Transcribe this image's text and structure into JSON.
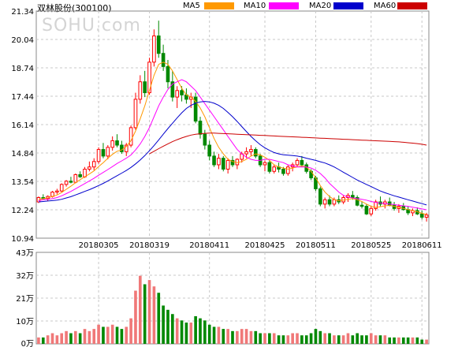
{
  "chart_title": "双林股份(300100)",
  "watermark": "SOHU.com",
  "legend": [
    {
      "label": "MA5",
      "color": "#ff9900"
    },
    {
      "label": "MA10",
      "color": "#ff00ff"
    },
    {
      "label": "MA20",
      "color": "#0000cc"
    },
    {
      "label": "MA60",
      "color": "#cc0000"
    }
  ],
  "colors": {
    "up": "#ff0000",
    "down": "#008800",
    "vol_up": "#f07878",
    "grid": "#c8c8c8",
    "axis": "#888888"
  },
  "chart_data": {
    "type": "candlestick",
    "price_axis": {
      "min": 10.94,
      "max": 21.34,
      "ticks": [
        "21.34",
        "20.04",
        "18.74",
        "17.44",
        "16.14",
        "14.84",
        "13.54",
        "12.24",
        "10.94"
      ]
    },
    "volume_axis": {
      "min": 0,
      "max": 43,
      "unit": "万",
      "ticks": [
        "43万",
        "32万",
        "21万",
        "10万",
        "0万"
      ]
    },
    "x_labels": [
      {
        "label": "20180305",
        "index": 13
      },
      {
        "label": "20180319",
        "index": 24
      },
      {
        "label": "20180411",
        "index": 37
      },
      {
        "label": "20180425",
        "index": 49
      },
      {
        "label": "20180511",
        "index": 60
      },
      {
        "label": "20180525",
        "index": 72
      },
      {
        "label": "20180611",
        "index": 83
      }
    ],
    "ohlc": [
      [
        12.6,
        12.85,
        12.55,
        12.8
      ],
      [
        12.8,
        12.95,
        12.7,
        12.75
      ],
      [
        12.75,
        12.9,
        12.65,
        12.85
      ],
      [
        12.85,
        13.1,
        12.8,
        13.05
      ],
      [
        13.05,
        13.2,
        12.95,
        13.1
      ],
      [
        13.1,
        13.45,
        13.05,
        13.4
      ],
      [
        13.4,
        13.6,
        13.3,
        13.55
      ],
      [
        13.55,
        13.75,
        13.45,
        13.5
      ],
      [
        13.5,
        13.9,
        13.45,
        13.85
      ],
      [
        13.85,
        14.0,
        13.7,
        13.75
      ],
      [
        13.75,
        14.2,
        13.7,
        14.1
      ],
      [
        14.1,
        14.45,
        14.0,
        14.2
      ],
      [
        14.2,
        14.6,
        14.05,
        14.45
      ],
      [
        14.45,
        15.1,
        14.35,
        15.0
      ],
      [
        15.0,
        15.3,
        14.6,
        14.7
      ],
      [
        14.7,
        15.2,
        14.55,
        15.1
      ],
      [
        15.1,
        15.6,
        14.95,
        15.4
      ],
      [
        15.4,
        15.7,
        15.1,
        15.2
      ],
      [
        15.2,
        15.4,
        14.8,
        14.9
      ],
      [
        14.9,
        15.3,
        14.7,
        15.2
      ],
      [
        15.2,
        16.1,
        15.1,
        16.0
      ],
      [
        16.0,
        17.6,
        15.9,
        17.3
      ],
      [
        17.3,
        18.4,
        17.1,
        18.1
      ],
      [
        18.1,
        18.6,
        17.4,
        17.6
      ],
      [
        17.6,
        19.2,
        17.5,
        19.0
      ],
      [
        19.0,
        20.5,
        18.8,
        20.2
      ],
      [
        20.2,
        20.9,
        19.2,
        19.4
      ],
      [
        19.4,
        19.8,
        18.6,
        18.8
      ],
      [
        18.8,
        19.1,
        17.8,
        18.1
      ],
      [
        18.1,
        18.6,
        17.2,
        17.4
      ],
      [
        17.4,
        17.9,
        16.9,
        17.7
      ],
      [
        17.7,
        17.9,
        17.2,
        17.5
      ],
      [
        17.5,
        17.8,
        17.1,
        17.3
      ],
      [
        17.3,
        17.6,
        16.9,
        17.4
      ],
      [
        17.4,
        17.6,
        16.2,
        16.3
      ],
      [
        16.3,
        16.5,
        15.5,
        15.7
      ],
      [
        15.7,
        15.9,
        15.0,
        15.2
      ],
      [
        15.2,
        15.4,
        14.5,
        14.7
      ],
      [
        14.7,
        14.9,
        14.2,
        14.3
      ],
      [
        14.3,
        14.8,
        14.1,
        14.6
      ],
      [
        14.6,
        14.7,
        14.0,
        14.1
      ],
      [
        14.1,
        14.6,
        13.9,
        14.5
      ],
      [
        14.5,
        14.7,
        14.2,
        14.3
      ],
      [
        14.3,
        14.6,
        14.1,
        14.55
      ],
      [
        14.55,
        14.9,
        14.4,
        14.8
      ],
      [
        14.8,
        15.1,
        14.6,
        14.9
      ],
      [
        14.9,
        15.2,
        14.7,
        15.0
      ],
      [
        15.0,
        15.1,
        14.6,
        14.7
      ],
      [
        14.7,
        14.8,
        14.2,
        14.3
      ],
      [
        14.3,
        14.5,
        14.0,
        14.4
      ],
      [
        14.4,
        14.5,
        13.9,
        14.0
      ],
      [
        14.0,
        14.3,
        13.9,
        14.2
      ],
      [
        14.2,
        14.4,
        13.95,
        14.1
      ],
      [
        14.1,
        14.2,
        13.8,
        13.9
      ],
      [
        13.9,
        14.3,
        13.8,
        14.2
      ],
      [
        14.2,
        14.4,
        14.0,
        14.3
      ],
      [
        14.3,
        14.6,
        14.2,
        14.5
      ],
      [
        14.5,
        14.7,
        14.2,
        14.3
      ],
      [
        14.3,
        14.4,
        13.9,
        14.0
      ],
      [
        14.0,
        14.1,
        13.6,
        13.7
      ],
      [
        13.7,
        13.8,
        13.1,
        13.2
      ],
      [
        13.2,
        13.3,
        12.4,
        12.5
      ],
      [
        12.5,
        12.8,
        12.3,
        12.7
      ],
      [
        12.7,
        12.9,
        12.4,
        12.5
      ],
      [
        12.5,
        12.8,
        12.4,
        12.7
      ],
      [
        12.7,
        12.9,
        12.5,
        12.6
      ],
      [
        12.6,
        12.9,
        12.5,
        12.8
      ],
      [
        12.8,
        13.0,
        12.6,
        12.9
      ],
      [
        12.9,
        13.1,
        12.7,
        12.8
      ],
      [
        12.8,
        12.9,
        12.4,
        12.45
      ],
      [
        12.45,
        12.6,
        12.3,
        12.4
      ],
      [
        12.4,
        12.5,
        12.0,
        12.05
      ],
      [
        12.05,
        12.4,
        11.95,
        12.3
      ],
      [
        12.3,
        12.7,
        12.2,
        12.6
      ],
      [
        12.6,
        12.85,
        12.4,
        12.5
      ],
      [
        12.5,
        12.7,
        12.3,
        12.6
      ],
      [
        12.6,
        12.8,
        12.4,
        12.45
      ],
      [
        12.45,
        12.6,
        12.2,
        12.3
      ],
      [
        12.3,
        12.5,
        12.1,
        12.4
      ],
      [
        12.4,
        12.55,
        12.2,
        12.25
      ],
      [
        12.25,
        12.4,
        12.0,
        12.1
      ],
      [
        12.1,
        12.3,
        11.95,
        12.2
      ],
      [
        12.2,
        12.35,
        12.0,
        12.05
      ],
      [
        12.05,
        12.2,
        11.8,
        11.9
      ],
      [
        11.9,
        12.1,
        11.7,
        12.0
      ]
    ],
    "volume": [
      3,
      3,
      4,
      5,
      4,
      5,
      6,
      5,
      6,
      5,
      7,
      6,
      7,
      9,
      8,
      8,
      9,
      8,
      7,
      8,
      12,
      25,
      32,
      28,
      30,
      27,
      24,
      18,
      16,
      14,
      12,
      11,
      10,
      10,
      13,
      12,
      11,
      9,
      8,
      8,
      7,
      7,
      6,
      6,
      7,
      7,
      6,
      6,
      5,
      5,
      5,
      5,
      4,
      4,
      4,
      5,
      5,
      4,
      4,
      5,
      7,
      6,
      5,
      5,
      4,
      4,
      4,
      5,
      4,
      5,
      4,
      4,
      5,
      4,
      4,
      4,
      3,
      3,
      3,
      3,
      3,
      3,
      3,
      2,
      2
    ],
    "ma5": [
      12.7,
      12.75,
      12.78,
      12.85,
      12.92,
      13.03,
      13.18,
      13.32,
      13.48,
      13.62,
      13.75,
      13.88,
      14.02,
      14.22,
      14.4,
      14.6,
      14.78,
      14.92,
      14.98,
      15.14,
      15.4,
      15.85,
      16.4,
      17.0,
      17.7,
      18.4,
      18.9,
      19.0,
      18.9,
      18.6,
      18.2,
      17.8,
      17.5,
      17.4,
      17.2,
      16.9,
      16.5,
      16.0,
      15.5,
      15.1,
      14.8,
      14.55,
      14.45,
      14.4,
      14.45,
      14.55,
      14.7,
      14.8,
      14.75,
      14.65,
      14.5,
      14.3,
      14.2,
      14.15,
      14.1,
      14.15,
      14.2,
      14.25,
      14.2,
      14.0,
      13.7,
      13.35,
      13.05,
      12.85,
      12.7,
      12.65,
      12.68,
      12.72,
      12.75,
      12.7,
      12.62,
      12.5,
      12.4,
      12.35,
      12.38,
      12.42,
      12.44,
      12.4,
      12.35,
      12.3,
      12.25,
      12.2,
      12.15,
      12.08,
      12.02
    ],
    "ma10": [
      12.65,
      12.7,
      12.72,
      12.75,
      12.8,
      12.88,
      12.98,
      13.08,
      13.2,
      13.32,
      13.44,
      13.56,
      13.68,
      13.82,
      13.95,
      14.08,
      14.22,
      14.36,
      14.48,
      14.6,
      14.75,
      14.98,
      15.25,
      15.6,
      16.0,
      16.5,
      17.0,
      17.4,
      17.75,
      18.0,
      18.1,
      18.2,
      18.1,
      17.9,
      17.7,
      17.4,
      17.1,
      16.8,
      16.5,
      16.2,
      15.9,
      15.6,
      15.3,
      15.0,
      14.8,
      14.65,
      14.55,
      14.5,
      14.5,
      14.55,
      14.55,
      14.5,
      14.45,
      14.4,
      14.3,
      14.25,
      14.2,
      14.2,
      14.2,
      14.15,
      14.05,
      13.9,
      13.7,
      13.45,
      13.25,
      13.05,
      12.9,
      12.82,
      12.78,
      12.75,
      12.72,
      12.68,
      12.62,
      12.58,
      12.55,
      12.52,
      12.5,
      12.48,
      12.45,
      12.42,
      12.4,
      12.36,
      12.32,
      12.28,
      12.24
    ],
    "ma20": [
      12.6,
      12.62,
      12.64,
      12.66,
      12.68,
      12.72,
      12.78,
      12.84,
      12.92,
      13.0,
      13.08,
      13.16,
      13.25,
      13.35,
      13.45,
      13.56,
      13.68,
      13.8,
      13.92,
      14.04,
      14.18,
      14.34,
      14.52,
      14.72,
      14.94,
      15.18,
      15.44,
      15.7,
      15.96,
      16.2,
      16.45,
      16.68,
      16.88,
      17.02,
      17.12,
      17.18,
      17.2,
      17.18,
      17.12,
      17.02,
      16.88,
      16.7,
      16.5,
      16.28,
      16.05,
      15.82,
      15.6,
      15.4,
      15.22,
      15.08,
      14.96,
      14.86,
      14.8,
      14.76,
      14.74,
      14.72,
      14.7,
      14.66,
      14.6,
      14.55,
      14.5,
      14.44,
      14.38,
      14.3,
      14.2,
      14.08,
      13.96,
      13.84,
      13.72,
      13.6,
      13.5,
      13.4,
      13.3,
      13.2,
      13.1,
      13.02,
      12.95,
      12.88,
      12.82,
      12.76,
      12.7,
      12.64,
      12.58,
      12.52,
      12.46
    ],
    "ma60": [
      null,
      null,
      null,
      null,
      null,
      null,
      null,
      null,
      null,
      null,
      null,
      null,
      null,
      null,
      null,
      null,
      null,
      null,
      null,
      null,
      null,
      null,
      null,
      null,
      14.8,
      14.92,
      15.04,
      15.15,
      15.26,
      15.36,
      15.45,
      15.53,
      15.6,
      15.66,
      15.7,
      15.72,
      15.74,
      15.75,
      15.75,
      15.74,
      15.73,
      15.72,
      15.71,
      15.7,
      15.69,
      15.68,
      15.67,
      15.66,
      15.65,
      15.64,
      15.63,
      15.62,
      15.61,
      15.6,
      15.59,
      15.58,
      15.57,
      15.56,
      15.55,
      15.54,
      15.53,
      15.52,
      15.51,
      15.5,
      15.49,
      15.48,
      15.47,
      15.46,
      15.45,
      15.44,
      15.43,
      15.42,
      15.41,
      15.4,
      15.39,
      15.38,
      15.37,
      15.36,
      15.35,
      15.33,
      15.31,
      15.29,
      15.27,
      15.24,
      15.2
    ]
  }
}
